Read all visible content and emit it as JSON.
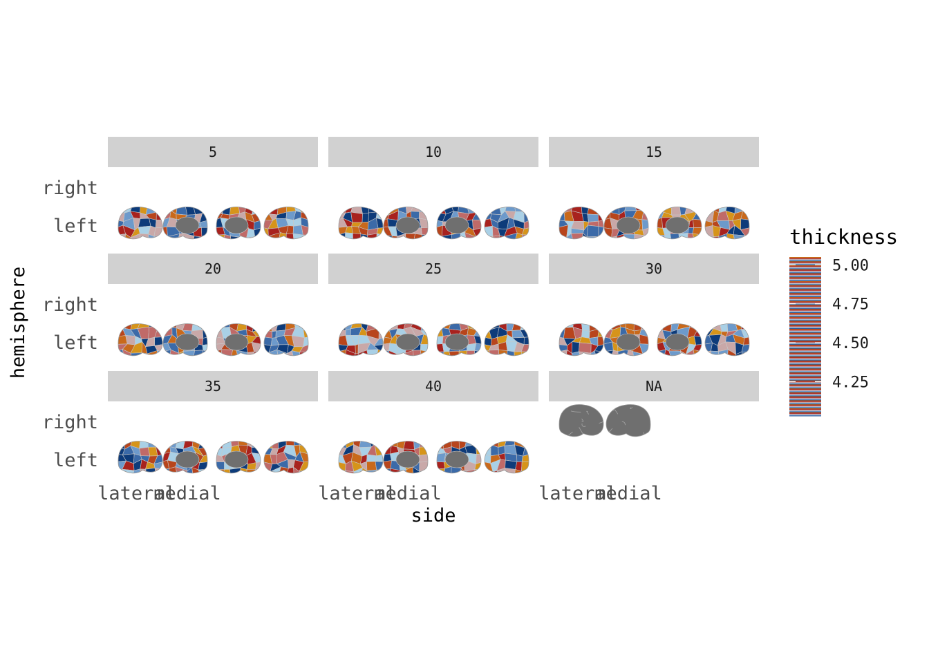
{
  "chart_data": {
    "type": "heatmap",
    "title": "",
    "xlabel": "side",
    "ylabel": "hemisphere",
    "x_tick_labels": [
      "lateral",
      "medial"
    ],
    "y_tick_labels": [
      "right",
      "left"
    ],
    "facets": [
      "5",
      "10",
      "15",
      "20",
      "25",
      "30",
      "35",
      "40",
      "NA"
    ],
    "legend": {
      "title": "thickness",
      "position": "right",
      "breaks": [
        5.0,
        4.75,
        4.5,
        4.25
      ],
      "break_labels": [
        "5.00",
        "4.75",
        "4.50",
        "4.25"
      ],
      "range": [
        4.03,
        5.05
      ],
      "colors": [
        "#0d3b7a",
        "#3b6aa8",
        "#6d9acb",
        "#a9d0e6",
        "#c9a8a8",
        "#c06a68",
        "#a8221e",
        "#b8451c",
        "#c9691b",
        "#d6941a"
      ]
    },
    "grid": false,
    "panels": [
      {
        "facet": "5",
        "left_hemisphere": {
          "lateral_views": 2,
          "medial_views": 2
        },
        "right_hemisphere": null
      },
      {
        "facet": "10",
        "left_hemisphere": {
          "lateral_views": 2,
          "medial_views": 2
        },
        "right_hemisphere": null
      },
      {
        "facet": "15",
        "left_hemisphere": {
          "lateral_views": 2,
          "medial_views": 2
        },
        "right_hemisphere": null
      },
      {
        "facet": "20",
        "left_hemisphere": {
          "lateral_views": 2,
          "medial_views": 2
        },
        "right_hemisphere": null
      },
      {
        "facet": "25",
        "left_hemisphere": {
          "lateral_views": 2,
          "medial_views": 2
        },
        "right_hemisphere": null
      },
      {
        "facet": "30",
        "left_hemisphere": {
          "lateral_views": 2,
          "medial_views": 2
        },
        "right_hemisphere": null
      },
      {
        "facet": "35",
        "left_hemisphere": {
          "lateral_views": 2,
          "medial_views": 2
        },
        "right_hemisphere": null
      },
      {
        "facet": "40",
        "left_hemisphere": {
          "lateral_views": 2,
          "medial_views": 2
        },
        "right_hemisphere": null
      },
      {
        "facet": "NA",
        "left_hemisphere": null,
        "right_hemisphere": {
          "lateral_views": 1,
          "medial_views": 1,
          "fill": "no data"
        }
      }
    ],
    "na_color": "#6f6f6f"
  }
}
